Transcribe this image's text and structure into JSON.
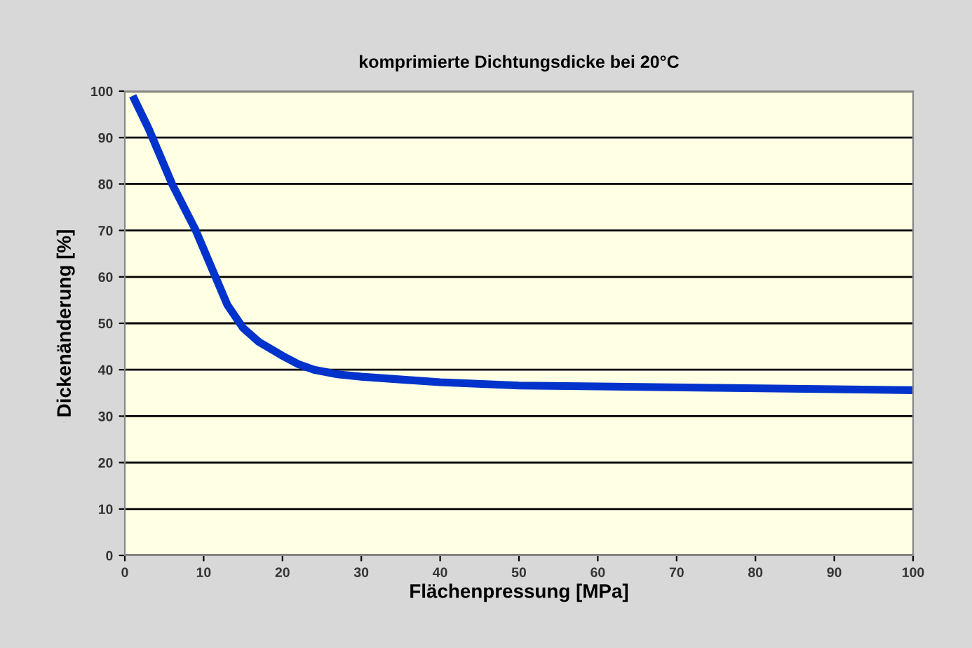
{
  "chart_data": {
    "type": "line",
    "title": "komprimierte Dichtungsdicke bei 20°C",
    "xlabel": "Flächenpressung [MPa]",
    "ylabel": "Dickenänderung [%]",
    "x": [
      1,
      3,
      6,
      9,
      11.5,
      13,
      15,
      17,
      20,
      22,
      24,
      27,
      30,
      35,
      40,
      50,
      60,
      75,
      90,
      100
    ],
    "series": [
      {
        "color": "#0033cc",
        "values": [
          99,
          92,
          80,
          70,
          60,
          54,
          49,
          46,
          43,
          41.2,
          40,
          39,
          38.5,
          37.9,
          37.3,
          36.6,
          36.4,
          36.1,
          35.8,
          35.6
        ]
      }
    ],
    "xlim": [
      0,
      100
    ],
    "ylim": [
      0,
      100
    ],
    "xticks": [
      0,
      10,
      20,
      30,
      40,
      50,
      60,
      70,
      80,
      90,
      100
    ],
    "yticks": [
      0,
      10,
      20,
      30,
      40,
      50,
      60,
      70,
      80,
      90,
      100
    ],
    "grid": "y",
    "marker": "none",
    "line_style": "solid",
    "legend": false
  }
}
